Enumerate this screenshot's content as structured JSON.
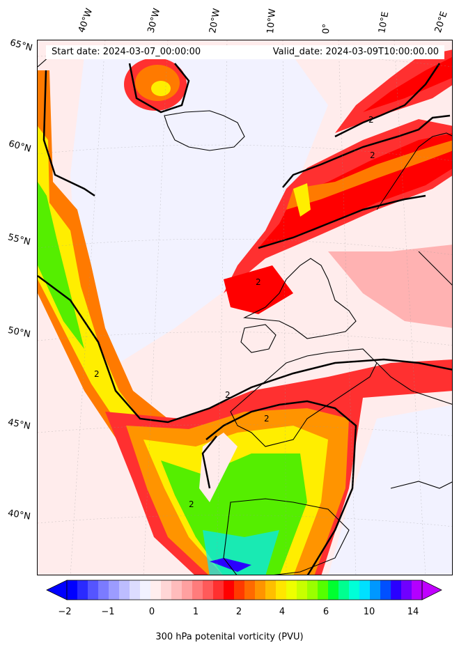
{
  "map": {
    "start_date_text": "Start date: 2024-03-07_00:00:00",
    "valid_date_text": "Valid_date: 2024-03-09T10:00:00.00",
    "lon_labels": [
      "40°W",
      "30°W",
      "20°W",
      "10°W",
      "0°",
      "10°E",
      "20°E"
    ],
    "lat_labels": [
      "65°N",
      "60°N",
      "55°N",
      "50°N",
      "45°N",
      "40°N"
    ],
    "contour_label": "2",
    "colors": {
      "neg_strong": "#0000ff",
      "neg_light": "#eef0ff",
      "near_zero": "#ffecec",
      "pink": "#ff9a9a",
      "red": "#ff0000",
      "orange": "#ff7a00",
      "yellow": "#ffee00",
      "green": "#55ee00",
      "cyan": "#00e8ff",
      "coast": "#000000"
    }
  },
  "colorbar": {
    "title": "300 hPa potenital vorticity (PVU)",
    "tick_labels": [
      "−2",
      "−1",
      "0",
      "1",
      "2",
      "4",
      "6",
      "10",
      "14"
    ],
    "colors": [
      "#0000ff",
      "#2a2aff",
      "#5555ff",
      "#7b7bff",
      "#9c9cff",
      "#bdbdff",
      "#dcdcff",
      "#f2f2ff",
      "#ffeeee",
      "#ffd6d6",
      "#ffbcbc",
      "#ffa0a0",
      "#ff7c7c",
      "#ff5a5a",
      "#ff3030",
      "#ff0000",
      "#ff3a00",
      "#ff6a00",
      "#ff9400",
      "#ffbe00",
      "#ffe600",
      "#eeff00",
      "#c8ff00",
      "#9aff00",
      "#55ff00",
      "#00ff30",
      "#00ff90",
      "#00ffd8",
      "#00e0ff",
      "#0098ff",
      "#0050ff",
      "#2a00ff",
      "#7000ff",
      "#b400ff"
    ],
    "under_color": "#0000ff",
    "over_color": "#c000ff"
  }
}
